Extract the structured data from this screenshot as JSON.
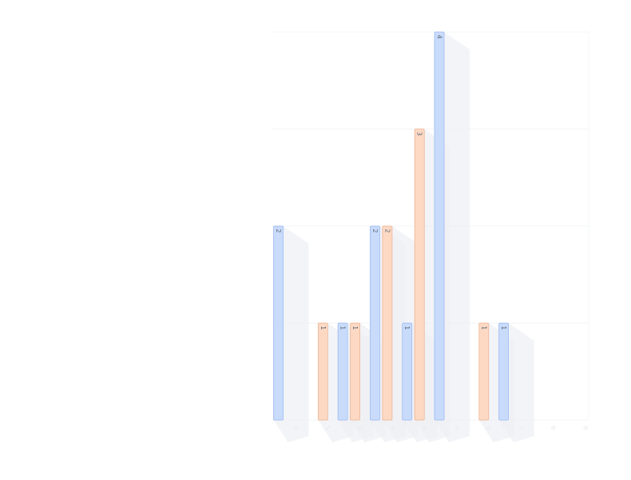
{
  "chart_data": {
    "type": "bar",
    "title": "",
    "xlabel": "",
    "ylabel": "",
    "ylim": [
      0,
      4
    ],
    "grid": true,
    "legend": "none",
    "colors": {
      "blue_fill": "#c9dbfb",
      "blue_stroke": "#9dbbf2",
      "orange_fill": "#fdd9c4",
      "orange_stroke": "#ecb493",
      "shadow": "#eef0f4",
      "gridline": "#f3f4f6"
    },
    "categories": [
      "0",
      "1",
      "2",
      "3",
      "4",
      "5",
      "6",
      "7",
      "8",
      "9"
    ],
    "series": [
      {
        "values": [
          2,
          0,
          1,
          2,
          1,
          4,
          0,
          1,
          0,
          0
        ]
      },
      {
        "values": [
          0,
          1,
          1,
          2,
          3,
          0,
          1,
          0,
          0,
          0
        ]
      }
    ]
  }
}
